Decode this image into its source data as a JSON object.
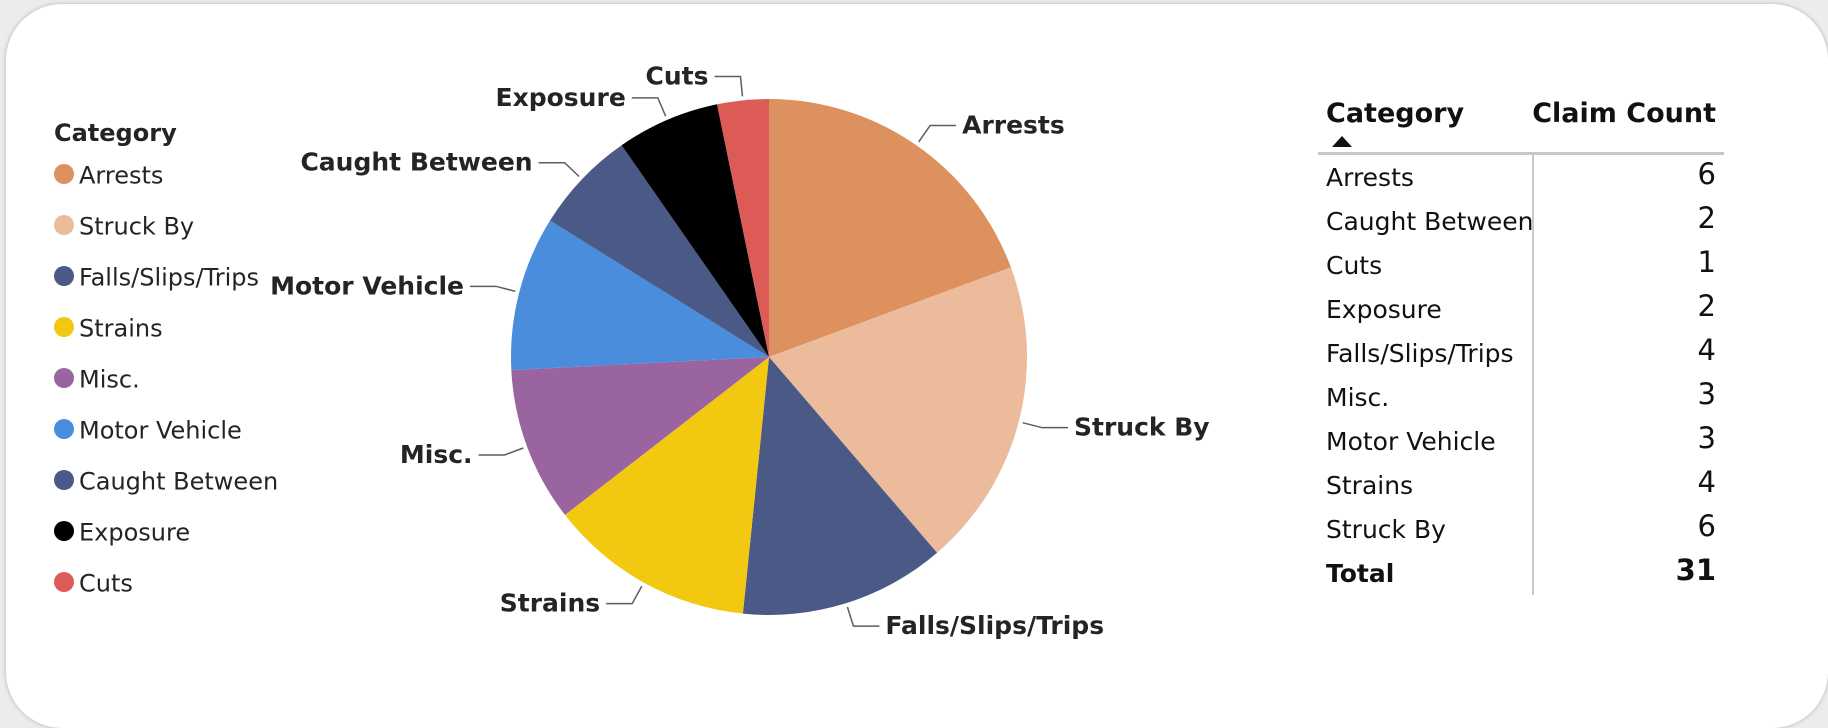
{
  "legend": {
    "title": "Category",
    "items": [
      {
        "label": "Arrests",
        "color": "#DD915F"
      },
      {
        "label": "Struck By",
        "color": "#EBBB9C"
      },
      {
        "label": "Falls/Slips/Trips",
        "color": "#4A5985"
      },
      {
        "label": "Strains",
        "color": "#F2C811"
      },
      {
        "label": "Misc.",
        "color": "#9A64A0"
      },
      {
        "label": "Motor Vehicle",
        "color": "#4A8DDC"
      },
      {
        "label": "Caught Between",
        "color": "#4A5985"
      },
      {
        "label": "Exposure",
        "color": "#000000"
      },
      {
        "label": "Cuts",
        "color": "#DD5B57"
      }
    ]
  },
  "chart_data": {
    "type": "pie",
    "title": "",
    "legend_position": "left",
    "slices": [
      {
        "label": "Arrests",
        "value": 6,
        "color": "#DD915F"
      },
      {
        "label": "Struck By",
        "value": 6,
        "color": "#EBBB9C"
      },
      {
        "label": "Falls/Slips/Trips",
        "value": 4,
        "color": "#4A5985"
      },
      {
        "label": "Strains",
        "value": 4,
        "color": "#F2C811"
      },
      {
        "label": "Misc.",
        "value": 3,
        "color": "#9A64A0"
      },
      {
        "label": "Motor Vehicle",
        "value": 3,
        "color": "#4A8DDC"
      },
      {
        "label": "Caught Between",
        "value": 2,
        "color": "#4A5985"
      },
      {
        "label": "Exposure",
        "value": 2,
        "color": "#000000"
      },
      {
        "label": "Cuts",
        "value": 1,
        "color": "#DD5B57"
      }
    ]
  },
  "table": {
    "header": {
      "category": "Category",
      "count": "Claim Count"
    },
    "rows": [
      {
        "category": "Arrests",
        "count": "6"
      },
      {
        "category": "Caught Between",
        "count": "2"
      },
      {
        "category": "Cuts",
        "count": "1"
      },
      {
        "category": "Exposure",
        "count": "2"
      },
      {
        "category": "Falls/Slips/Trips",
        "count": "4"
      },
      {
        "category": "Misc.",
        "count": "3"
      },
      {
        "category": "Motor Vehicle",
        "count": "3"
      },
      {
        "category": "Strains",
        "count": "4"
      },
      {
        "category": "Struck By",
        "count": "6"
      }
    ],
    "total": {
      "category": "Total",
      "count": "31"
    }
  }
}
